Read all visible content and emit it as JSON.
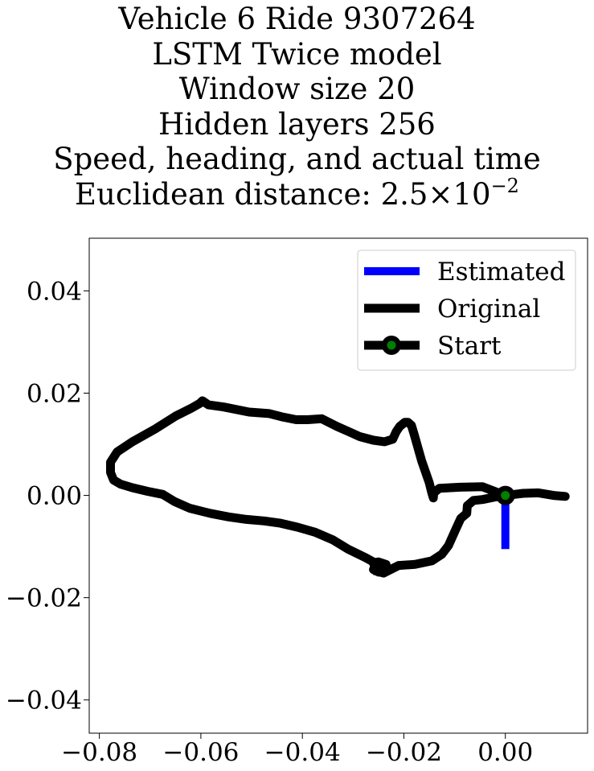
{
  "title_lines": [
    "Vehicle 6 Ride 9307264",
    "LSTM Twice model",
    "Window size 20",
    "Hidden layers 256",
    "Speed, heading, and actual time"
  ],
  "distance_line": {
    "prefix": "Euclidean distance: ",
    "mantissa": "2.5",
    "times": "×",
    "base": "10",
    "exponent": "−2"
  },
  "chart_data": {
    "type": "line",
    "title": "Vehicle 6 Ride 9307264 / LSTM Twice model / Window size 20 / Hidden layers 256 / Speed, heading, and actual time / Euclidean distance: 2.5×10^-2",
    "xlabel": "",
    "ylabel": "",
    "xlim": [
      -0.082,
      0.0162
    ],
    "ylim": [
      -0.0465,
      0.0503
    ],
    "xticks": [
      -0.08,
      -0.06,
      -0.04,
      -0.02,
      0.0
    ],
    "xtick_labels": [
      "−0.08",
      "−0.06",
      "−0.04",
      "−0.02",
      "0.00"
    ],
    "yticks": [
      0.04,
      0.02,
      0.0,
      -0.02,
      -0.04
    ],
    "ytick_labels": [
      "0.04",
      "0.02",
      "0.00",
      "−0.02",
      "−0.04"
    ],
    "grid": false,
    "legend_position": "top-right",
    "series": [
      {
        "name": "Estimated",
        "color": "#0000ff",
        "points": [
          [
            0.0,
            0.0
          ],
          [
            0.0,
            -0.0105
          ]
        ]
      },
      {
        "name": "Original",
        "color": "#000000",
        "points": [
          [
            0.0,
            0.0
          ],
          [
            -0.0045,
            0.0017
          ],
          [
            -0.009,
            0.0016
          ],
          [
            -0.013,
            0.0014
          ],
          [
            -0.0141,
            0.0005
          ],
          [
            -0.0142,
            -0.0005
          ],
          [
            -0.0145,
            0.0005
          ],
          [
            -0.015,
            0.0025
          ],
          [
            -0.0165,
            0.0068
          ],
          [
            -0.018,
            0.012
          ],
          [
            -0.0185,
            0.0137
          ],
          [
            -0.0192,
            0.0143
          ],
          [
            -0.0198,
            0.0143
          ],
          [
            -0.0208,
            0.0135
          ],
          [
            -0.0215,
            0.0125
          ],
          [
            -0.0222,
            0.011
          ],
          [
            -0.0238,
            0.0105
          ],
          [
            -0.026,
            0.0108
          ],
          [
            -0.0287,
            0.0115
          ],
          [
            -0.0305,
            0.0123
          ],
          [
            -0.0332,
            0.0135
          ],
          [
            -0.0362,
            0.015
          ],
          [
            -0.039,
            0.0148
          ],
          [
            -0.0412,
            0.0148
          ],
          [
            -0.0437,
            0.0153
          ],
          [
            -0.0465,
            0.016
          ],
          [
            -0.0505,
            0.0163
          ],
          [
            -0.0555,
            0.0173
          ],
          [
            -0.0585,
            0.0177
          ],
          [
            -0.0597,
            0.0185
          ],
          [
            -0.0602,
            0.018
          ],
          [
            -0.062,
            0.017
          ],
          [
            -0.065,
            0.0155
          ],
          [
            -0.069,
            0.013
          ],
          [
            -0.0735,
            0.0105
          ],
          [
            -0.0765,
            0.0085
          ],
          [
            -0.0778,
            0.0065
          ],
          [
            -0.0778,
            0.0045
          ],
          [
            -0.0772,
            0.003
          ],
          [
            -0.0758,
            0.0022
          ],
          [
            -0.0735,
            0.0015
          ],
          [
            -0.0705,
            0.0008
          ],
          [
            -0.0675,
            0.0002
          ],
          [
            -0.0652,
            -0.0012
          ],
          [
            -0.0622,
            -0.0025
          ],
          [
            -0.0582,
            -0.0035
          ],
          [
            -0.0545,
            -0.0042
          ],
          [
            -0.051,
            -0.0047
          ],
          [
            -0.0475,
            -0.005
          ],
          [
            -0.0445,
            -0.0054
          ],
          [
            -0.041,
            -0.0062
          ],
          [
            -0.0375,
            -0.0072
          ],
          [
            -0.034,
            -0.0087
          ],
          [
            -0.031,
            -0.0105
          ],
          [
            -0.0275,
            -0.0122
          ],
          [
            -0.0255,
            -0.0133
          ],
          [
            -0.026,
            -0.0145
          ],
          [
            -0.025,
            -0.015
          ],
          [
            -0.024,
            -0.0145
          ],
          [
            -0.0235,
            -0.0135
          ],
          [
            -0.025,
            -0.013
          ],
          [
            -0.026,
            -0.0132
          ],
          [
            -0.0255,
            -0.0148
          ],
          [
            -0.024,
            -0.0152
          ],
          [
            -0.021,
            -0.0137
          ],
          [
            -0.0178,
            -0.0135
          ],
          [
            -0.0145,
            -0.0128
          ],
          [
            -0.0125,
            -0.0115
          ],
          [
            -0.0112,
            -0.0098
          ],
          [
            -0.0098,
            -0.0067
          ],
          [
            -0.0088,
            -0.0045
          ],
          [
            -0.0076,
            -0.0035
          ],
          [
            -0.0075,
            -0.002
          ],
          [
            -0.0063,
            -0.001
          ],
          [
            -0.0045,
            -0.0008
          ],
          [
            -0.002,
            -0.0003
          ],
          [
            0.0,
            0.0
          ],
          [
            0.0035,
            0.0004
          ],
          [
            0.0065,
            0.0005
          ],
          [
            0.0095,
            0.0
          ],
          [
            0.0118,
            -0.0002
          ]
        ]
      },
      {
        "name": "Start",
        "color": "#008000",
        "marker_edge_color": "#000000",
        "points": [
          [
            0.0,
            0.0
          ]
        ]
      }
    ]
  }
}
